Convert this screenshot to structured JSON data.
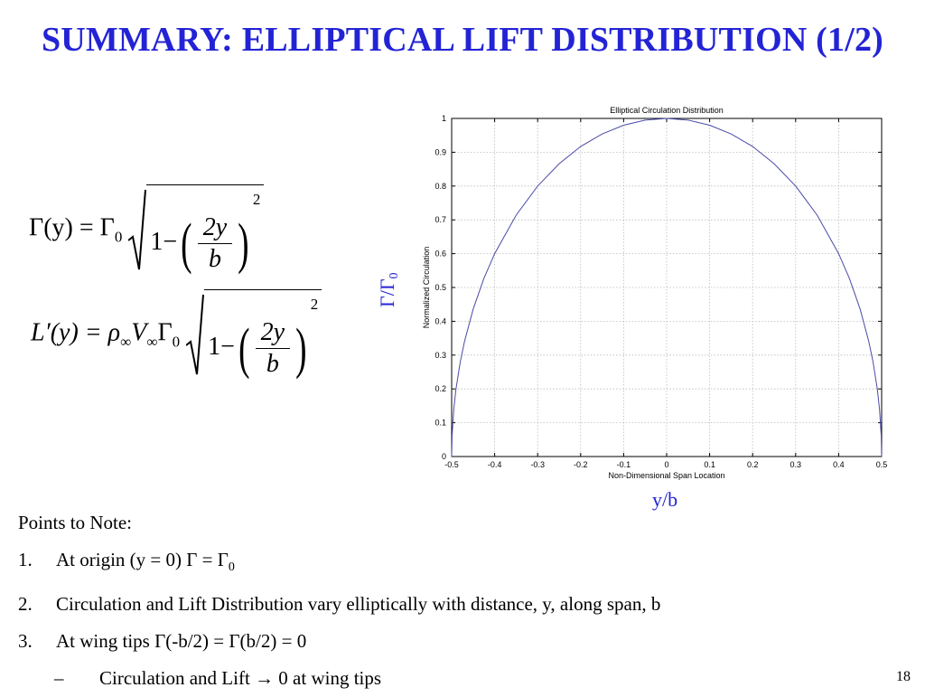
{
  "slide": {
    "title": "SUMMARY: ELLIPTICAL LIFT DISTRIBUTION (1/2)",
    "page_number": "18"
  },
  "equations": {
    "eq1": {
      "lhs": "Γ(y) = Γ",
      "lhs_sub": "0",
      "one_minus": "1−",
      "num": "2y",
      "den": "b",
      "exp": "2"
    },
    "eq2": {
      "lhs_L": "L′(y) = ",
      "rho": "ρ",
      "rho_sub": "∞",
      "V": "V",
      "V_sub": "∞",
      "gamma": "Γ",
      "gamma_sub": "0",
      "one_minus": "1−",
      "num": "2y",
      "den": "b",
      "exp": "2"
    }
  },
  "annotations": {
    "gamma_ratio": "Γ/Γ",
    "gamma_ratio_sub": "0",
    "y_over_b": "y/b"
  },
  "chart_data": {
    "type": "line",
    "title": "Elliptical Circulation Distribution",
    "xlabel": "Non-Dimensional Span Location",
    "ylabel": "Normalized Circulation",
    "xlim": [
      -0.5,
      0.5
    ],
    "ylim": [
      0,
      1
    ],
    "xticks": [
      "-0.5",
      "-0.4",
      "-0.3",
      "-0.2",
      "-0.1",
      "0",
      "0.1",
      "0.2",
      "0.3",
      "0.4",
      "0.5"
    ],
    "yticks": [
      "0",
      "0.1",
      "0.2",
      "0.3",
      "0.4",
      "0.5",
      "0.6",
      "0.7",
      "0.8",
      "0.9",
      "1"
    ],
    "grid": true,
    "line_color": "#4a4aa8",
    "series": [
      {
        "x": [
          -0.5,
          -0.499,
          -0.495,
          -0.49,
          -0.48,
          -0.47,
          -0.45,
          -0.425,
          -0.4,
          -0.35,
          -0.3,
          -0.25,
          -0.2,
          -0.15,
          -0.1,
          -0.05,
          0,
          0.05,
          0.1,
          0.15,
          0.2,
          0.25,
          0.3,
          0.35,
          0.4,
          0.425,
          0.45,
          0.47,
          0.48,
          0.49,
          0.495,
          0.499,
          0.5
        ],
        "y": [
          0,
          0.063,
          0.141,
          0.199,
          0.28,
          0.341,
          0.436,
          0.527,
          0.6,
          0.714,
          0.8,
          0.866,
          0.917,
          0.954,
          0.98,
          0.995,
          1,
          0.995,
          0.98,
          0.954,
          0.917,
          0.866,
          0.8,
          0.714,
          0.6,
          0.527,
          0.436,
          0.341,
          0.28,
          0.199,
          0.141,
          0.063,
          0
        ]
      }
    ]
  },
  "notes": {
    "heading": "Points to Note:",
    "items": [
      {
        "num": "1.",
        "text": "At origin (y = 0) Γ = Γ",
        "sub": "0"
      },
      {
        "num": "2.",
        "text": "Circulation and Lift Distribution vary elliptically with distance, y, along span, b"
      },
      {
        "num": "3.",
        "text": "At wing tips Γ(-b/2) = Γ(b/2) = 0"
      }
    ],
    "subitem": {
      "dash": "–",
      "text": "Circulation and Lift → 0 at wing tips"
    }
  }
}
